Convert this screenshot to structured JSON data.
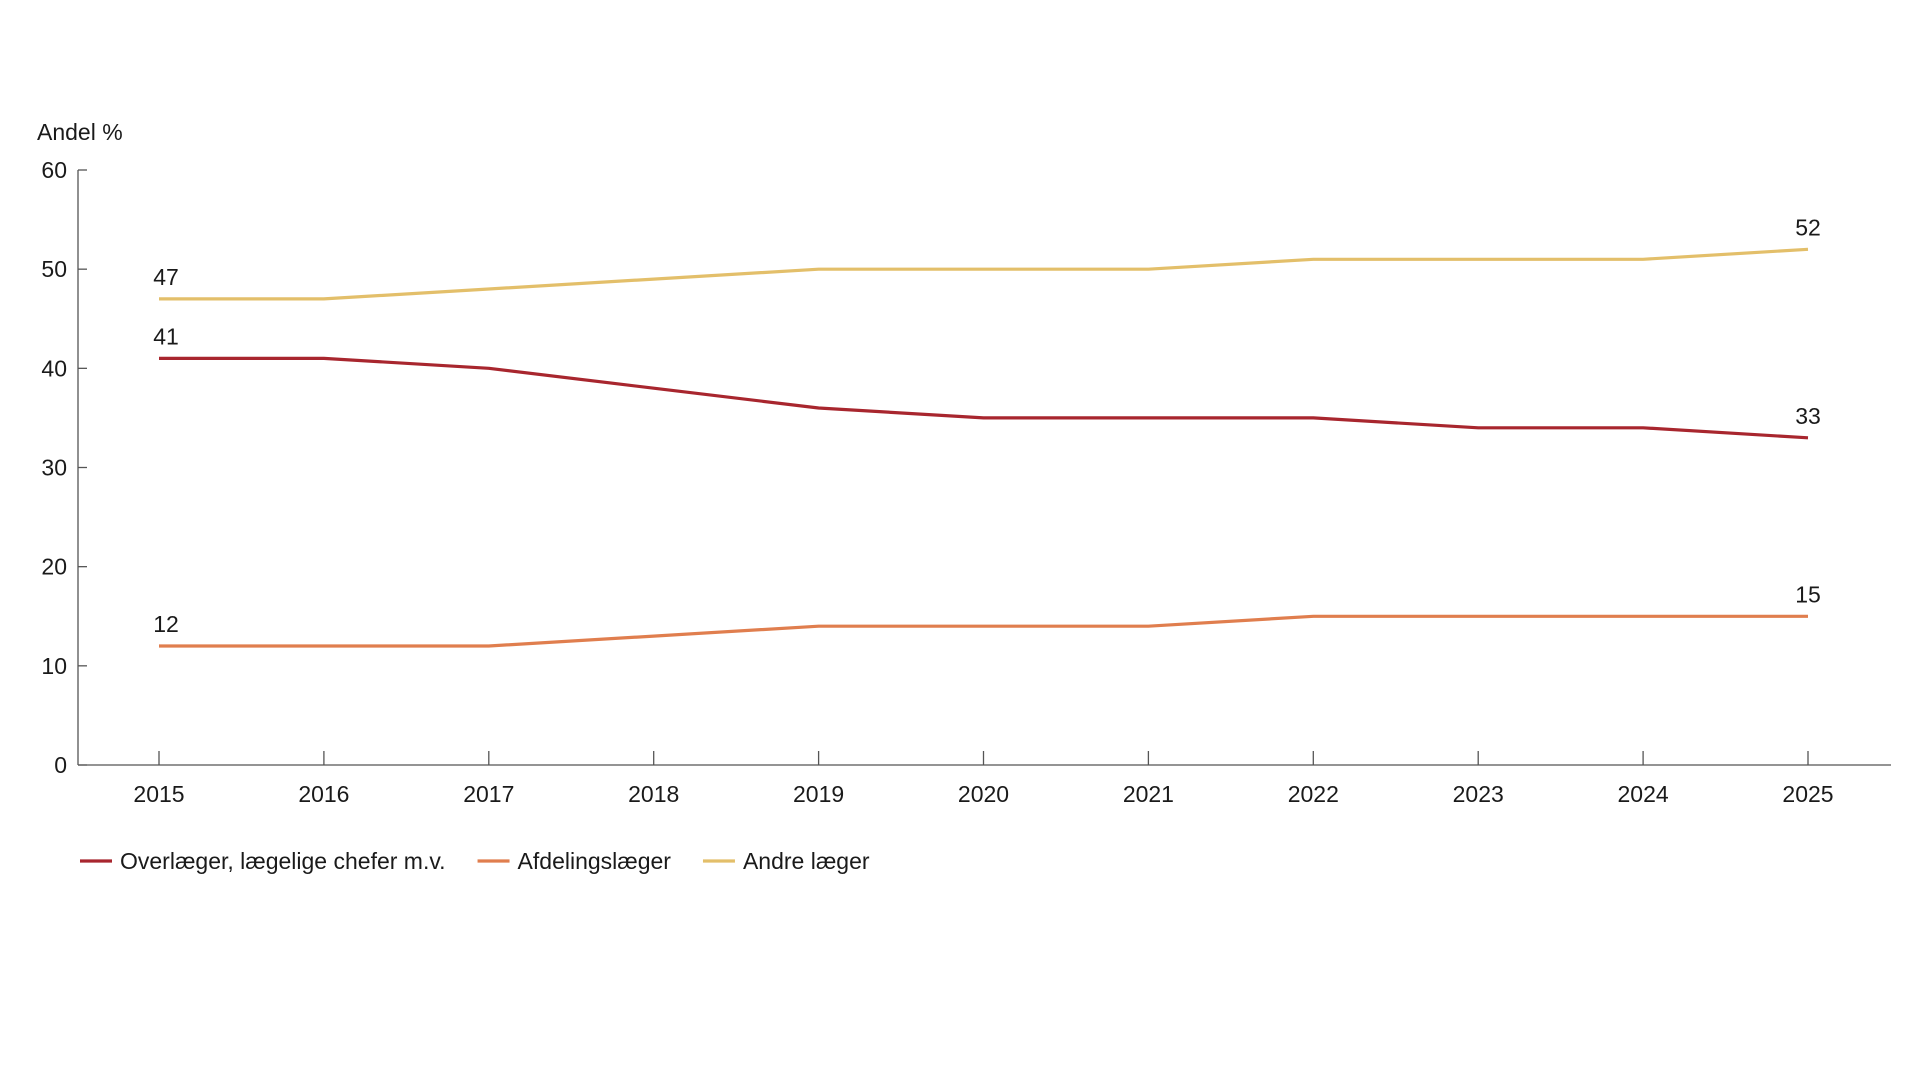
{
  "chart_data": {
    "type": "line",
    "ylabel": "Andel %",
    "xlabel": "",
    "ylim": [
      0,
      60
    ],
    "yticks": [
      0,
      10,
      20,
      30,
      40,
      50,
      60
    ],
    "x": [
      "2015",
      "2016",
      "2017",
      "2018",
      "2019",
      "2020",
      "2021",
      "2022",
      "2023",
      "2024",
      "2025"
    ],
    "grid": false,
    "legend_position": "bottom-left",
    "series": [
      {
        "name": "Overlæger, lægelige chefer m.v.",
        "color": "#a8262e",
        "values": [
          41,
          41,
          40,
          38,
          36,
          35,
          35,
          35,
          34,
          34,
          33
        ],
        "start_label": "41",
        "end_label": "33"
      },
      {
        "name": "Afdelingslæger",
        "color": "#e07e4e",
        "values": [
          12,
          12,
          12,
          13,
          14,
          14,
          14,
          15,
          15,
          15,
          15
        ],
        "start_label": "12",
        "end_label": "15"
      },
      {
        "name": "Andre læger",
        "color": "#e3bf6a",
        "values": [
          47,
          47,
          48,
          49,
          50,
          50,
          50,
          51,
          51,
          51,
          52
        ],
        "start_label": "47",
        "end_label": "52"
      }
    ]
  }
}
